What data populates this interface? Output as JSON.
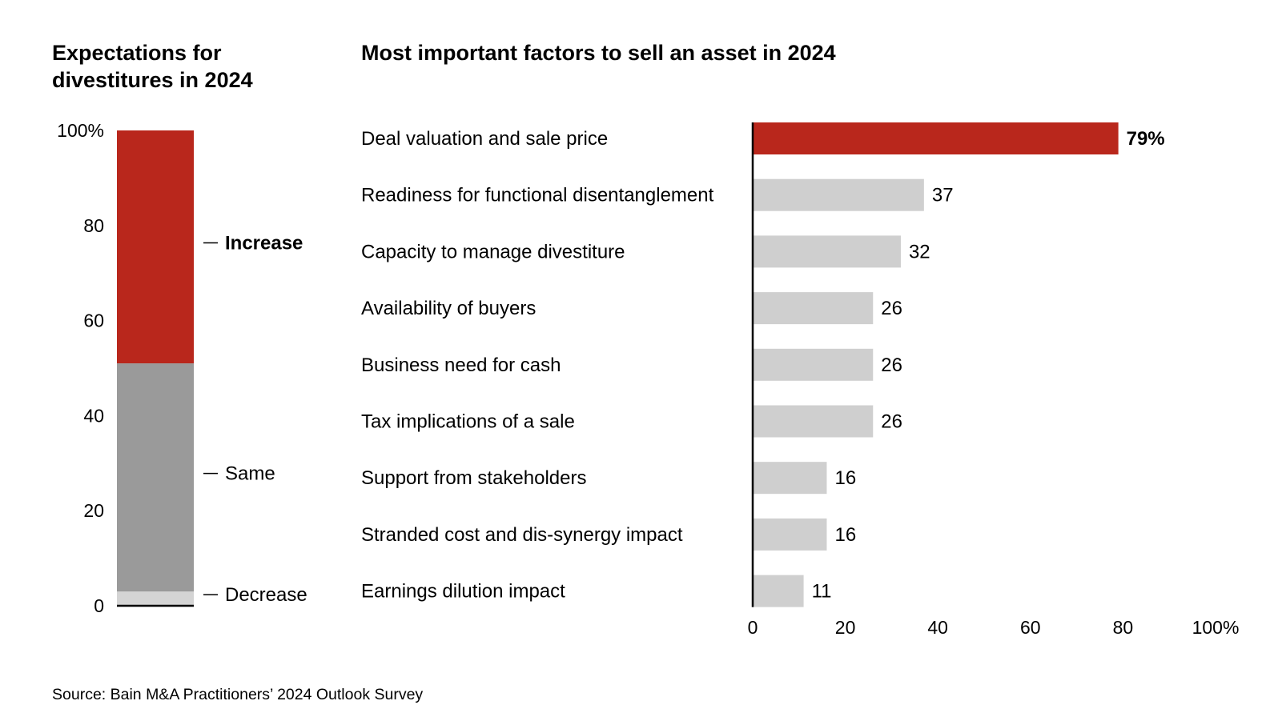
{
  "chart_data": [
    {
      "type": "stacked_bar",
      "title": "Expectations for divestitures in 2024",
      "title_lines": [
        "Expectations for",
        "divestitures in 2024"
      ],
      "ylim": [
        0,
        100
      ],
      "yticks": [
        0,
        20,
        40,
        60,
        80,
        100
      ],
      "ytick_labels": [
        "0",
        "20",
        "40",
        "60",
        "80",
        "100%"
      ],
      "segments": [
        {
          "name": "Decrease",
          "value": 3,
          "color": "#d4d4d4"
        },
        {
          "name": "Same",
          "value": 48,
          "color": "#9a9a9a"
        },
        {
          "name": "Increase",
          "value": 49,
          "color": "#b9271c"
        }
      ],
      "highlight_segment": "Increase"
    },
    {
      "type": "bar",
      "orientation": "horizontal",
      "title": "Most important factors to sell an asset in 2024",
      "categories": [
        "Deal valuation and sale price",
        "Readiness for functional disentanglement",
        "Capacity to manage divestiture",
        "Availability of buyers",
        "Business need for cash",
        "Tax implications of a sale",
        "Support from stakeholders",
        "Stranded cost and dis-synergy impact",
        "Earnings dilution impact"
      ],
      "values": [
        79,
        37,
        32,
        26,
        26,
        26,
        16,
        16,
        11
      ],
      "value_labels": [
        "79%",
        "37",
        "32",
        "26",
        "26",
        "26",
        "16",
        "16",
        "11"
      ],
      "xlim": [
        0,
        100
      ],
      "xticks": [
        0,
        20,
        40,
        60,
        80,
        100
      ],
      "xtick_labels": [
        "0",
        "20",
        "40",
        "60",
        "80",
        "100%"
      ],
      "highlight_color": "#b9271c",
      "bar_color": "#cfcfcf"
    }
  ],
  "footer": {
    "source": "Source: Bain M&A Practitioners’ 2024 Outlook Survey"
  }
}
